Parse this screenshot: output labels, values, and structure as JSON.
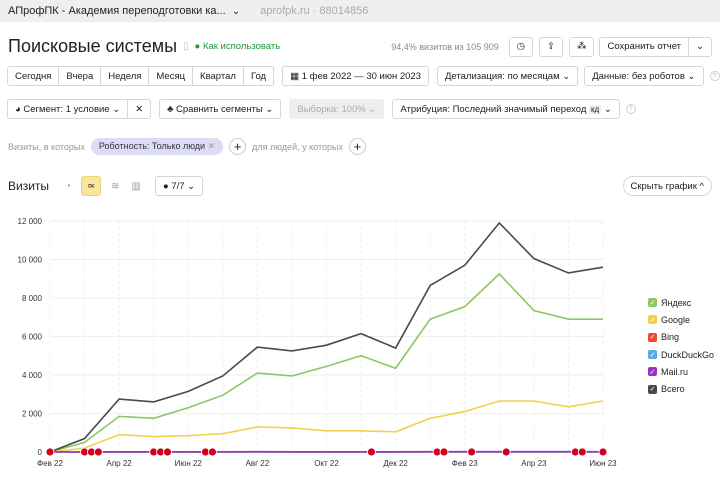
{
  "header": {
    "site": "АПрофПК - Академия переподготовки ка...",
    "domain": "aprofpk.ru · 88014856"
  },
  "title": "Поисковые системы",
  "how_to": "Как использовать",
  "visits_share": "94,4% визитов из 105 909",
  "save_report": "Сохранить отчет",
  "periods": [
    "Сегодня",
    "Вчера",
    "Неделя",
    "Месяц",
    "Квартал",
    "Год"
  ],
  "date_range": "1 фев 2022 — 30 июн 2023",
  "detail": "Детализация: по месяцам",
  "data_filter": "Данные: без роботов",
  "segment": "Сегмент: 1 условие",
  "compare": "Сравнить сегменты",
  "sample": "Выборка: 100%",
  "attribution": "Атрибуция: Последний значимый переход",
  "attribution_badge": "кд",
  "filter": {
    "prefix": "Визиты, в которых",
    "chip": "Роботность: Только люди",
    "people": "для людей, у которых"
  },
  "chart_header": {
    "metric": "Визиты",
    "series_count": "7/7",
    "hide": "Скрыть график"
  },
  "colors": {
    "yandex": "#8cc665",
    "google": "#f5cf4b",
    "bing": "#e94b35",
    "duckduckgo": "#5aa9e6",
    "mailru": "#9b30c4",
    "total": "#4a4a4a",
    "accent": "#fbe59a"
  },
  "chart_data": {
    "type": "line",
    "ylim": [
      0,
      12000
    ],
    "grid": true,
    "legend": "right",
    "yticks": [
      "0",
      "2 000",
      "4 000",
      "6 000",
      "8 000",
      "10 000",
      "12 000"
    ],
    "xticks": [
      "Фев 22",
      "Апр 22",
      "Июн 22",
      "Авг 22",
      "Окт 22",
      "Дек 22",
      "Фев 23",
      "Апр 23",
      "Июн 23"
    ],
    "x": [
      "2022-02",
      "2022-03",
      "2022-04",
      "2022-05",
      "2022-06",
      "2022-07",
      "2022-08",
      "2022-09",
      "2022-10",
      "2022-11",
      "2022-12",
      "2023-01",
      "2023-02",
      "2023-03",
      "2023-04",
      "2023-05",
      "2023-06"
    ],
    "series": [
      {
        "name": "Яндекс",
        "key": "yandex",
        "values": [
          0,
          500,
          1850,
          1750,
          2300,
          2950,
          4100,
          3950,
          4450,
          5000,
          4350,
          6900,
          7550,
          9250,
          7350,
          6900,
          6900
        ]
      },
      {
        "name": "Google",
        "key": "google",
        "values": [
          0,
          200,
          900,
          800,
          850,
          950,
          1300,
          1250,
          1100,
          1100,
          1050,
          1750,
          2100,
          2650,
          2650,
          2350,
          2650
        ]
      },
      {
        "name": "Bing",
        "key": "bing",
        "values": [
          0,
          0,
          0,
          0,
          0,
          0,
          0,
          0,
          0,
          0,
          0,
          0,
          0,
          0,
          0,
          0,
          0
        ]
      },
      {
        "name": "DuckDuckGo",
        "key": "duckduckgo",
        "values": [
          0,
          0,
          0,
          0,
          0,
          0,
          0,
          0,
          0,
          0,
          0,
          0,
          0,
          0,
          0,
          0,
          0
        ]
      },
      {
        "name": "Mail.ru",
        "key": "mailru",
        "values": [
          0,
          5,
          10,
          10,
          10,
          10,
          15,
          10,
          10,
          10,
          10,
          15,
          15,
          15,
          15,
          15,
          15
        ]
      },
      {
        "name": "Всего",
        "key": "total",
        "values": [
          0,
          700,
          2750,
          2600,
          3150,
          3950,
          5450,
          5250,
          5550,
          6150,
          5400,
          8650,
          9700,
          11900,
          10050,
          9300,
          9600
        ]
      }
    ]
  }
}
